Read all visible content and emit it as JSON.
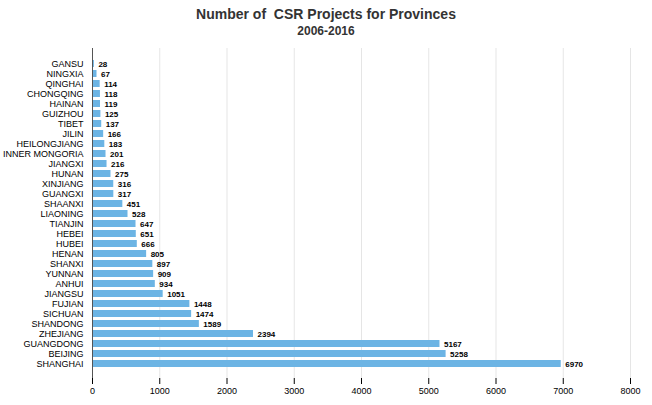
{
  "chart_data": {
    "type": "bar",
    "orientation": "horizontal",
    "title": "Number of  CSR Projects for Provinces",
    "subtitle": "2006-2016",
    "categories": [
      "GANSU",
      "NINGXIA",
      "QINGHAI",
      "CHONGQING",
      "HAINAN",
      "GUIZHOU",
      "TIBET",
      "JILIN",
      "HEILONGJIANG",
      "INNER MONGORIA",
      "JIANGXI",
      "HUNAN",
      "XINJIANG",
      "GUANGXI",
      "SHAANXI",
      "LIAONING",
      "TIANJIN",
      "HEBEI",
      "HUBEI",
      "HENAN",
      "SHANXI",
      "YUNNAN",
      "ANHUI",
      "JIANGSU",
      "FUJIAN",
      "SICHUAN",
      "SHANDONG",
      "ZHEJIANG",
      "GUANGDONG",
      "BEIJING",
      "SHANGHAI"
    ],
    "values": [
      28,
      67,
      114,
      118,
      119,
      125,
      137,
      166,
      183,
      201,
      216,
      275,
      316,
      317,
      451,
      528,
      647,
      651,
      666,
      805,
      897,
      909,
      934,
      1051,
      1448,
      1474,
      1589,
      2394,
      5167,
      5258,
      6970
    ],
    "color": "#6CB4E4",
    "xlim": [
      0,
      8000
    ],
    "xticks": [
      0,
      1000,
      2000,
      3000,
      4000,
      5000,
      6000,
      7000,
      8000
    ],
    "grid": true,
    "data_labels": true
  }
}
